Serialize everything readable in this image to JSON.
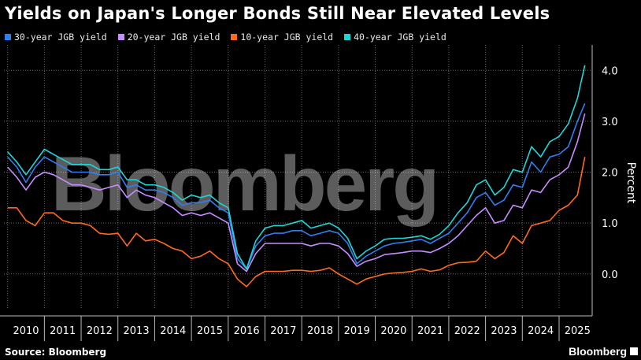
{
  "title": "Yields on Japan's Longer Bonds Still Near Elevated Levels",
  "source": "Source: Bloomberg",
  "brand": "Bloomberg",
  "watermark": "Bloomberg",
  "colors": {
    "background": "#000000",
    "grid": "#6a6a6a",
    "30y": "#2f7ff0",
    "20y": "#c78cff",
    "10y": "#ff6a1a",
    "40y": "#1fd6d6"
  },
  "chart_data": {
    "type": "line",
    "ylabel": "Percent",
    "ylim": [
      -0.7,
      4.5
    ],
    "yticks": [
      0.0,
      1.0,
      2.0,
      3.0,
      4.0
    ],
    "ytick_labels": [
      "0.0",
      "1.0",
      "2.0",
      "3.0",
      "4.0"
    ],
    "xlim": [
      2009.9,
      2025.9
    ],
    "xticks": [
      2010,
      2011,
      2012,
      2013,
      2014,
      2015,
      2016,
      2017,
      2018,
      2019,
      2020,
      2021,
      2022,
      2023,
      2024,
      2025
    ],
    "grid": true,
    "legend_position": "top-left",
    "series": [
      {
        "key": "30y",
        "name": "30-year JGB yield",
        "x": [
          2010.0,
          2010.25,
          2010.5,
          2010.75,
          2011.0,
          2011.25,
          2011.5,
          2011.75,
          2012.0,
          2012.25,
          2012.5,
          2012.75,
          2013.0,
          2013.25,
          2013.5,
          2013.75,
          2014.0,
          2014.25,
          2014.5,
          2014.75,
          2015.0,
          2015.25,
          2015.5,
          2015.75,
          2016.0,
          2016.25,
          2016.5,
          2016.75,
          2017.0,
          2017.25,
          2017.5,
          2017.75,
          2018.0,
          2018.25,
          2018.5,
          2018.75,
          2019.0,
          2019.25,
          2019.5,
          2019.75,
          2020.0,
          2020.25,
          2020.5,
          2020.75,
          2021.0,
          2021.25,
          2021.5,
          2021.75,
          2022.0,
          2022.25,
          2022.5,
          2022.75,
          2023.0,
          2023.25,
          2023.5,
          2023.75,
          2024.0,
          2024.25,
          2024.5,
          2024.75,
          2025.0,
          2025.25,
          2025.5,
          2025.7
        ],
        "values": [
          2.3,
          2.1,
          1.8,
          2.1,
          2.3,
          2.2,
          2.1,
          2.0,
          2.0,
          2.0,
          1.95,
          1.95,
          2.0,
          1.7,
          1.75,
          1.65,
          1.65,
          1.6,
          1.5,
          1.35,
          1.4,
          1.4,
          1.45,
          1.3,
          1.2,
          0.3,
          0.1,
          0.55,
          0.75,
          0.8,
          0.8,
          0.85,
          0.85,
          0.75,
          0.8,
          0.85,
          0.8,
          0.6,
          0.2,
          0.35,
          0.45,
          0.55,
          0.6,
          0.62,
          0.65,
          0.68,
          0.6,
          0.7,
          0.8,
          1.0,
          1.2,
          1.5,
          1.6,
          1.35,
          1.45,
          1.75,
          1.7,
          2.2,
          2.0,
          2.3,
          2.35,
          2.5,
          3.0,
          3.35
        ]
      },
      {
        "key": "20y",
        "name": "20-year JGB yield",
        "x": [
          2010.0,
          2010.25,
          2010.5,
          2010.75,
          2011.0,
          2011.25,
          2011.5,
          2011.75,
          2012.0,
          2012.25,
          2012.5,
          2012.75,
          2013.0,
          2013.25,
          2013.5,
          2013.75,
          2014.0,
          2014.25,
          2014.5,
          2014.75,
          2015.0,
          2015.25,
          2015.5,
          2015.75,
          2016.0,
          2016.25,
          2016.5,
          2016.75,
          2017.0,
          2017.25,
          2017.5,
          2017.75,
          2018.0,
          2018.25,
          2018.5,
          2018.75,
          2019.0,
          2019.25,
          2019.5,
          2019.75,
          2020.0,
          2020.25,
          2020.5,
          2020.75,
          2021.0,
          2021.25,
          2021.5,
          2021.75,
          2022.0,
          2022.25,
          2022.5,
          2022.75,
          2023.0,
          2023.25,
          2023.5,
          2023.75,
          2024.0,
          2024.25,
          2024.5,
          2024.75,
          2025.0,
          2025.25,
          2025.5,
          2025.7
        ],
        "values": [
          2.1,
          1.9,
          1.65,
          1.9,
          2.0,
          1.95,
          1.85,
          1.75,
          1.75,
          1.7,
          1.65,
          1.7,
          1.75,
          1.5,
          1.65,
          1.55,
          1.5,
          1.4,
          1.3,
          1.15,
          1.2,
          1.15,
          1.2,
          1.1,
          1.0,
          0.2,
          0.05,
          0.4,
          0.6,
          0.6,
          0.6,
          0.6,
          0.6,
          0.55,
          0.6,
          0.6,
          0.55,
          0.4,
          0.15,
          0.25,
          0.3,
          0.38,
          0.4,
          0.42,
          0.45,
          0.45,
          0.42,
          0.5,
          0.6,
          0.75,
          0.95,
          1.15,
          1.3,
          1.0,
          1.05,
          1.35,
          1.3,
          1.65,
          1.6,
          1.85,
          1.95,
          2.1,
          2.6,
          3.15
        ]
      },
      {
        "key": "10y",
        "name": "10-year JGB yield",
        "x": [
          2010.0,
          2010.25,
          2010.5,
          2010.75,
          2011.0,
          2011.25,
          2011.5,
          2011.75,
          2012.0,
          2012.25,
          2012.5,
          2012.75,
          2013.0,
          2013.25,
          2013.5,
          2013.75,
          2014.0,
          2014.25,
          2014.5,
          2014.75,
          2015.0,
          2015.25,
          2015.5,
          2015.75,
          2016.0,
          2016.25,
          2016.5,
          2016.75,
          2017.0,
          2017.25,
          2017.5,
          2017.75,
          2018.0,
          2018.25,
          2018.5,
          2018.75,
          2019.0,
          2019.25,
          2019.5,
          2019.75,
          2020.0,
          2020.25,
          2020.5,
          2020.75,
          2021.0,
          2021.25,
          2021.5,
          2021.75,
          2022.0,
          2022.25,
          2022.5,
          2022.75,
          2023.0,
          2023.25,
          2023.5,
          2023.75,
          2024.0,
          2024.25,
          2024.5,
          2024.75,
          2025.0,
          2025.25,
          2025.5,
          2025.7
        ],
        "values": [
          1.3,
          1.3,
          1.05,
          0.95,
          1.2,
          1.2,
          1.05,
          1.0,
          1.0,
          0.95,
          0.8,
          0.78,
          0.8,
          0.55,
          0.8,
          0.65,
          0.68,
          0.6,
          0.5,
          0.45,
          0.3,
          0.35,
          0.45,
          0.3,
          0.2,
          -0.1,
          -0.25,
          -0.05,
          0.05,
          0.05,
          0.05,
          0.07,
          0.07,
          0.05,
          0.07,
          0.12,
          0.0,
          -0.1,
          -0.2,
          -0.1,
          -0.05,
          0.0,
          0.02,
          0.03,
          0.05,
          0.1,
          0.05,
          0.08,
          0.17,
          0.22,
          0.23,
          0.25,
          0.45,
          0.3,
          0.42,
          0.75,
          0.6,
          0.95,
          1.0,
          1.05,
          1.25,
          1.35,
          1.55,
          2.3
        ]
      },
      {
        "key": "40y",
        "name": "40-year JGB yield",
        "x": [
          2010.0,
          2010.25,
          2010.5,
          2010.75,
          2011.0,
          2011.25,
          2011.5,
          2011.75,
          2012.0,
          2012.25,
          2012.5,
          2012.75,
          2013.0,
          2013.25,
          2013.5,
          2013.75,
          2014.0,
          2014.25,
          2014.5,
          2014.75,
          2015.0,
          2015.25,
          2015.5,
          2015.75,
          2016.0,
          2016.25,
          2016.5,
          2016.75,
          2017.0,
          2017.25,
          2017.5,
          2017.75,
          2018.0,
          2018.25,
          2018.5,
          2018.75,
          2019.0,
          2019.25,
          2019.5,
          2019.75,
          2020.0,
          2020.25,
          2020.5,
          2020.75,
          2021.0,
          2021.25,
          2021.5,
          2021.75,
          2022.0,
          2022.25,
          2022.5,
          2022.75,
          2023.0,
          2023.25,
          2023.5,
          2023.75,
          2024.0,
          2024.25,
          2024.5,
          2024.75,
          2025.0,
          2025.25,
          2025.5,
          2025.7
        ],
        "values": [
          2.4,
          2.2,
          1.95,
          2.2,
          2.45,
          2.35,
          2.25,
          2.15,
          2.15,
          2.15,
          2.05,
          2.05,
          2.1,
          1.85,
          1.85,
          1.75,
          1.75,
          1.7,
          1.6,
          1.45,
          1.55,
          1.5,
          1.55,
          1.4,
          1.3,
          0.4,
          0.1,
          0.65,
          0.9,
          0.95,
          0.95,
          1.0,
          1.05,
          0.9,
          0.95,
          1.0,
          0.9,
          0.7,
          0.3,
          0.45,
          0.55,
          0.68,
          0.7,
          0.7,
          0.72,
          0.75,
          0.68,
          0.78,
          0.95,
          1.2,
          1.4,
          1.75,
          1.85,
          1.55,
          1.7,
          2.05,
          2.0,
          2.5,
          2.3,
          2.6,
          2.7,
          2.95,
          3.45,
          4.1
        ]
      }
    ]
  }
}
